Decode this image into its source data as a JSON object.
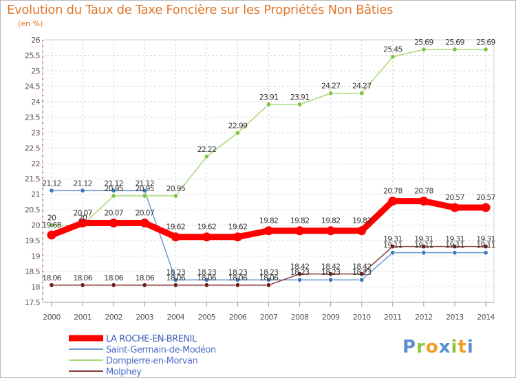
{
  "title": "Evolution du Taux de Taxe Foncière sur les Propriétés Non Bâties",
  "unit_label": "(en %)",
  "logo": {
    "text": "Proxiti",
    "letters": [
      "P",
      "r",
      "o",
      "x",
      "i",
      "t",
      "i"
    ],
    "colors": [
      "#5b8fd0",
      "#8cc43c",
      "#f0a020",
      "#5b8fd0",
      "#8cc43c",
      "#f0a020",
      "#5b8fd0"
    ]
  },
  "chart_data": {
    "type": "line",
    "title": "Evolution du Taux de Taxe Foncière sur les Propriétés Non Bâties",
    "ylabel": "(en %)",
    "xlabel": "",
    "ylim": [
      17.5,
      26
    ],
    "yticks": [
      "17.5",
      "18",
      "18.5",
      "19",
      "19.5",
      "20",
      "20.5",
      "21",
      "21.5",
      "22",
      "22.5",
      "23",
      "23.5",
      "24",
      "24.5",
      "25",
      "25.5",
      "26"
    ],
    "x": [
      "2000",
      "2001",
      "2002",
      "2003",
      "2004",
      "2005",
      "2006",
      "2007",
      "2008",
      "2009",
      "2010",
      "2011",
      "2012",
      "2013",
      "2014"
    ],
    "grid": true,
    "legend_position": "bottom-left",
    "series": [
      {
        "name": "LA ROCHE-EN-BRENIL",
        "color": "#ff0000",
        "marker_color": "#ff0000",
        "values": [
          19.68,
          20.07,
          20.07,
          20.07,
          19.62,
          19.62,
          19.62,
          19.82,
          19.82,
          19.82,
          19.82,
          20.78,
          20.78,
          20.57,
          20.57
        ],
        "labels": [
          "19.68",
          "20.07",
          "20.07",
          "20.07",
          "19.62",
          "19.62",
          "19.62",
          "19.82",
          "19.82",
          "19.82",
          "19.82",
          "20.78",
          "20.78",
          "20.57",
          "20.57"
        ]
      },
      {
        "name": "Saint-Germain-de-Modéon",
        "color": "#6b9bd1",
        "marker_color": "#3a78c0",
        "values": [
          21.12,
          21.12,
          21.12,
          21.12,
          18.23,
          18.23,
          18.23,
          18.23,
          18.23,
          18.23,
          18.23,
          19.11,
          19.11,
          19.11,
          19.11
        ],
        "labels": [
          "21.12",
          "21.12",
          "21.12",
          "21.12",
          "18.23",
          "18.23",
          "18.23",
          "18.23",
          "18.23",
          "18.23",
          "18.23",
          "19.11",
          "19.11",
          "19.11",
          "19.11"
        ]
      },
      {
        "name": "Dompierre-en-Morvan",
        "color": "#a8d878",
        "marker_color": "#7cc43c",
        "values": [
          20,
          20,
          20.95,
          20.95,
          20.95,
          22.22,
          22.99,
          23.91,
          23.91,
          24.27,
          24.27,
          25.45,
          25.69,
          25.69,
          25.69
        ],
        "labels": [
          "20",
          "20",
          "20.95",
          "20.95",
          "20.95",
          "22.22",
          "22.99",
          "23.91",
          "23.91",
          "24.27",
          "24.27",
          "25.45",
          "25.69",
          "25.69",
          "25.69"
        ]
      },
      {
        "name": "Molphey",
        "color": "#8b3a3a",
        "marker_color": "#6b1a1a",
        "values": [
          18.06,
          18.06,
          18.06,
          18.06,
          18.06,
          18.06,
          18.06,
          18.06,
          18.42,
          18.42,
          18.42,
          19.31,
          19.31,
          19.31,
          19.31
        ],
        "labels": [
          "18.06",
          "18.06",
          "18.06",
          "18.06",
          "18.06",
          "18.06",
          "18.06",
          "18.06",
          "18.42",
          "18.42",
          "18.42",
          "19.31",
          "19.31",
          "19.31",
          "19.31"
        ]
      }
    ]
  }
}
